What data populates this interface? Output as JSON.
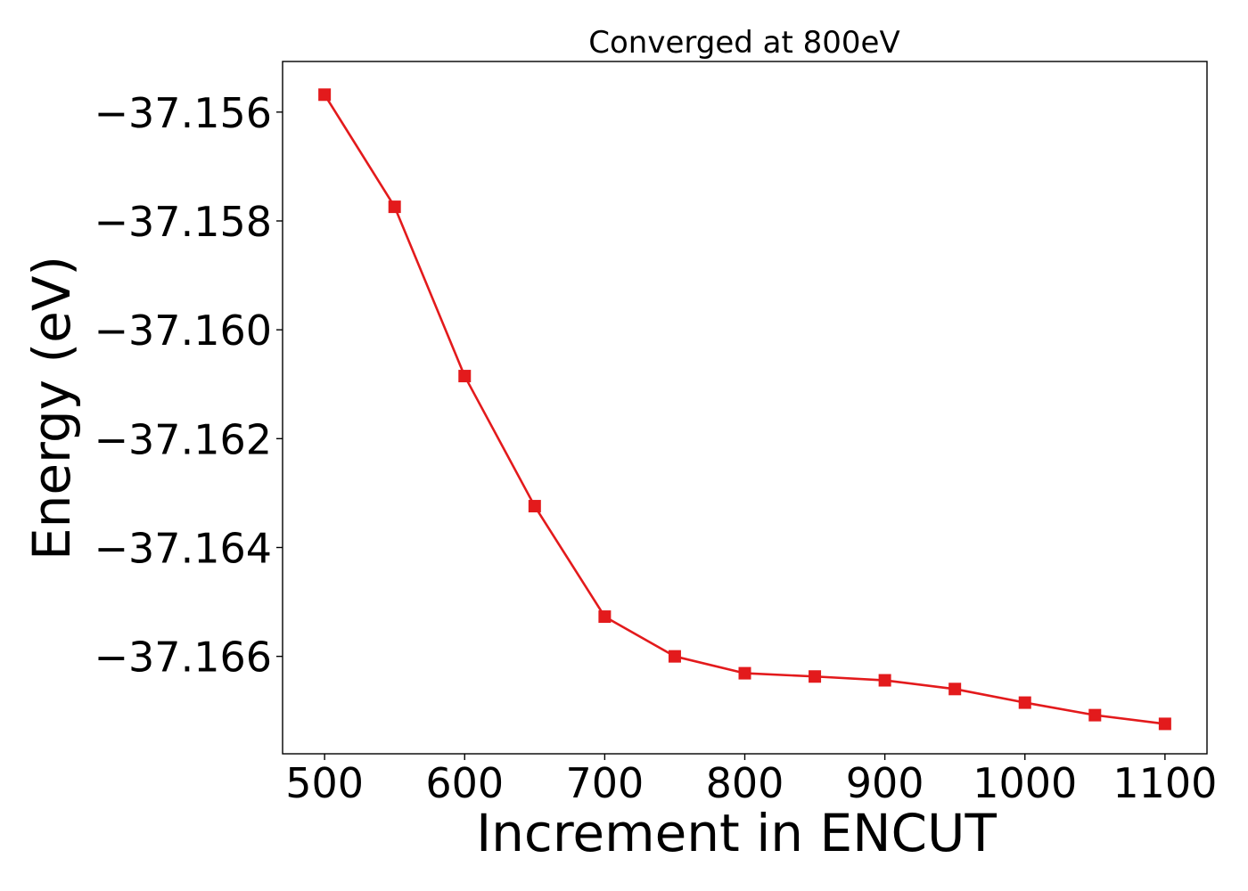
{
  "chart_data": {
    "type": "line",
    "title": "Converged at 800eV",
    "xlabel": "Increment in ENCUT",
    "ylabel": "Energy (eV)",
    "xlim": [
      470,
      1130
    ],
    "ylim": [
      -37.16779,
      -37.15507
    ],
    "xticks": [
      500,
      600,
      700,
      800,
      900,
      1000,
      1100
    ],
    "xtick_labels": [
      "500",
      "600",
      "700",
      "800",
      "900",
      "1000",
      "1100"
    ],
    "yticks": [
      -37.156,
      -37.158,
      -37.16,
      -37.162,
      -37.164,
      -37.166
    ],
    "ytick_labels": [
      "−37.156",
      "−37.158",
      "−37.160",
      "−37.162",
      "−37.164",
      "−37.166"
    ],
    "grid": false,
    "series": [
      {
        "color": "#e31a1c",
        "marker": "square",
        "x": [
          500,
          550,
          600,
          650,
          700,
          750,
          800,
          850,
          900,
          950,
          1000,
          1050,
          1100
        ],
        "y": [
          -37.15568,
          -37.15774,
          -37.16085,
          -37.16324,
          -37.16527,
          -37.166,
          -37.16631,
          -37.16637,
          -37.16644,
          -37.1666,
          -37.16685,
          -37.16708,
          -37.16724
        ]
      }
    ]
  }
}
